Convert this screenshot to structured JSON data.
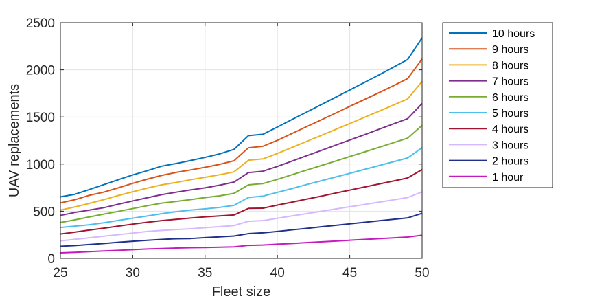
{
  "chart_data": {
    "type": "line",
    "title": "",
    "xlabel": "Fleet size",
    "ylabel": "UAV replacements",
    "xlim": [
      25,
      50
    ],
    "ylim": [
      0,
      2500
    ],
    "xticks": [
      25,
      30,
      35,
      40,
      45,
      50
    ],
    "yticks": [
      0,
      500,
      1000,
      1500,
      2000,
      2500
    ],
    "grid": true,
    "legend_position": "outside-right",
    "x": [
      25,
      26,
      27,
      28,
      29,
      30,
      31,
      32,
      33,
      34,
      35,
      36,
      37,
      38,
      39,
      40,
      41,
      42,
      43,
      44,
      45,
      46,
      47,
      48,
      49,
      50
    ],
    "series": [
      {
        "name": "10 hours",
        "color": "#0072BD",
        "values": [
          652,
          680,
          730,
          782,
          834,
          885,
          930,
          978,
          1006,
          1038,
          1071,
          1108,
          1156,
          1302,
          1316,
          1393,
          1472,
          1550,
          1628,
          1707,
          1786,
          1865,
          1944,
          2026,
          2109,
          2340
        ]
      },
      {
        "name": "9 hours",
        "color": "#D95319",
        "values": [
          588,
          622,
          669,
          703,
          748,
          796,
          840,
          880,
          912,
          938,
          966,
          997,
          1035,
          1173,
          1189,
          1252,
          1324,
          1396,
          1467,
          1539,
          1612,
          1684,
          1756,
          1830,
          1907,
          2115
        ]
      },
      {
        "name": "8 hours",
        "color": "#EDB120",
        "values": [
          512,
          545,
          583,
          623,
          667,
          706,
          745,
          780,
          805,
          834,
          860,
          887,
          917,
          1041,
          1055,
          1113,
          1176,
          1239,
          1302,
          1366,
          1430,
          1495,
          1559,
          1625,
          1691,
          1878
        ]
      },
      {
        "name": "7 hours",
        "color": "#7E2F8E",
        "values": [
          455,
          487,
          512,
          537,
          574,
          609,
          643,
          676,
          702,
          726,
          748,
          776,
          809,
          910,
          924,
          975,
          1031,
          1087,
          1143,
          1199,
          1255,
          1311,
          1368,
          1425,
          1482,
          1642
        ]
      },
      {
        "name": "6 hours",
        "color": "#77AC30",
        "values": [
          380,
          408,
          439,
          469,
          498,
          528,
          558,
          586,
          604,
          623,
          645,
          663,
          690,
          780,
          793,
          838,
          887,
          935,
          983,
          1031,
          1080,
          1128,
          1177,
          1226,
          1275,
          1410
        ]
      },
      {
        "name": "5 hours",
        "color": "#4DBEEE",
        "values": [
          327,
          342,
          356,
          377,
          402,
          426,
          449,
          474,
          495,
          512,
          525,
          540,
          562,
          646,
          660,
          700,
          740,
          782,
          822,
          862,
          902,
          943,
          983,
          1024,
          1065,
          1175
        ]
      },
      {
        "name": "4 hours",
        "color": "#A2142F",
        "values": [
          258,
          278,
          300,
          320,
          342,
          363,
          383,
          400,
          414,
          427,
          440,
          450,
          460,
          530,
          532,
          565,
          596,
          628,
          659,
          692,
          724,
          756,
          788,
          820,
          853,
          942
        ]
      },
      {
        "name": "3 hours",
        "color": "#D5B8FF",
        "values": [
          185,
          201,
          218,
          235,
          251,
          268,
          285,
          296,
          305,
          313,
          325,
          336,
          348,
          393,
          400,
          425,
          450,
          474,
          498,
          523,
          547,
          571,
          596,
          620,
          645,
          706
        ]
      },
      {
        "name": "2 hours",
        "color": "#1F2F8A",
        "values": [
          128,
          136,
          147,
          158,
          170,
          181,
          191,
          200,
          208,
          210,
          220,
          228,
          237,
          262,
          271,
          285,
          302,
          317,
          334,
          350,
          366,
          382,
          398,
          414,
          429,
          478
        ]
      },
      {
        "name": "1 hour",
        "color": "#C41ABF",
        "values": [
          58,
          64,
          71,
          78,
          85,
          92,
          99,
          104,
          109,
          113,
          115,
          118,
          122,
          138,
          141,
          150,
          158,
          167,
          175,
          183,
          192,
          200,
          209,
          217,
          226,
          245
        ]
      }
    ]
  }
}
